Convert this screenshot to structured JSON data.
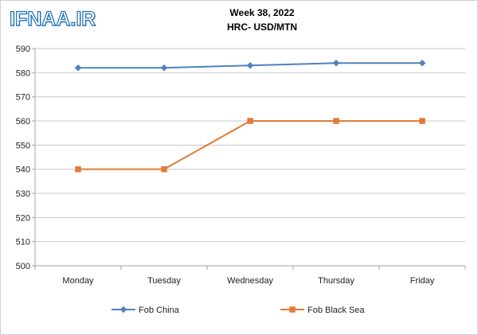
{
  "watermark": "IFNAA.IR",
  "chart_data": {
    "type": "line",
    "title": "Week 38, 2022",
    "subtitle": "HRC- USD/MTN",
    "xlabel": "",
    "ylabel": "",
    "categories": [
      "Monday",
      "Tuesday",
      "Wednesday",
      "Thursday",
      "Friday"
    ],
    "ylim": [
      500,
      590
    ],
    "yticks": [
      500,
      510,
      520,
      530,
      540,
      550,
      560,
      570,
      580,
      590
    ],
    "grid": true,
    "legend_position": "bottom",
    "series": [
      {
        "name": "Fob China",
        "values": [
          582,
          582,
          583,
          584,
          584
        ],
        "color": "#4f81bd",
        "marker": "diamond"
      },
      {
        "name": "Fob Black Sea",
        "values": [
          540,
          540,
          560,
          560,
          560
        ],
        "color": "#e07b39",
        "marker": "square"
      }
    ]
  }
}
